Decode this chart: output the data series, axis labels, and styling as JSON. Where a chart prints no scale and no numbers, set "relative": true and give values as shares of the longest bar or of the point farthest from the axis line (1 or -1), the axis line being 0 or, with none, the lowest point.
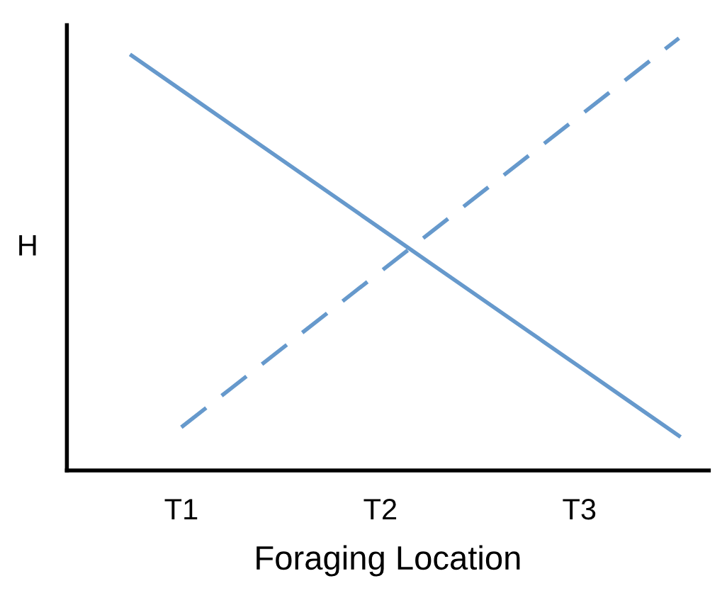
{
  "chart_data": {
    "type": "line",
    "relative": true,
    "ylabel": "H",
    "xlabel": "Foraging Location",
    "categories": [
      null,
      "T1",
      null,
      null,
      null,
      "T2",
      null,
      null,
      null,
      "T3",
      null,
      null
    ],
    "series": [
      {
        "color": "#6699cc",
        "values": [
          0.96,
          0.88,
          0.8,
          0.72,
          0.64,
          0.56,
          0.48,
          0.4,
          0.32,
          0.24,
          0.16,
          0.08
        ],
        "line_style": "solid"
      },
      {
        "color": "#6699cc",
        "values": [
          null,
          0.1,
          0.19,
          0.28,
          0.37,
          0.46,
          0.55,
          0.64,
          0.73,
          0.82,
          0.91,
          1.0
        ],
        "line_style": "dashed"
      }
    ],
    "grid": false,
    "legend": false,
    "marker": "none"
  }
}
